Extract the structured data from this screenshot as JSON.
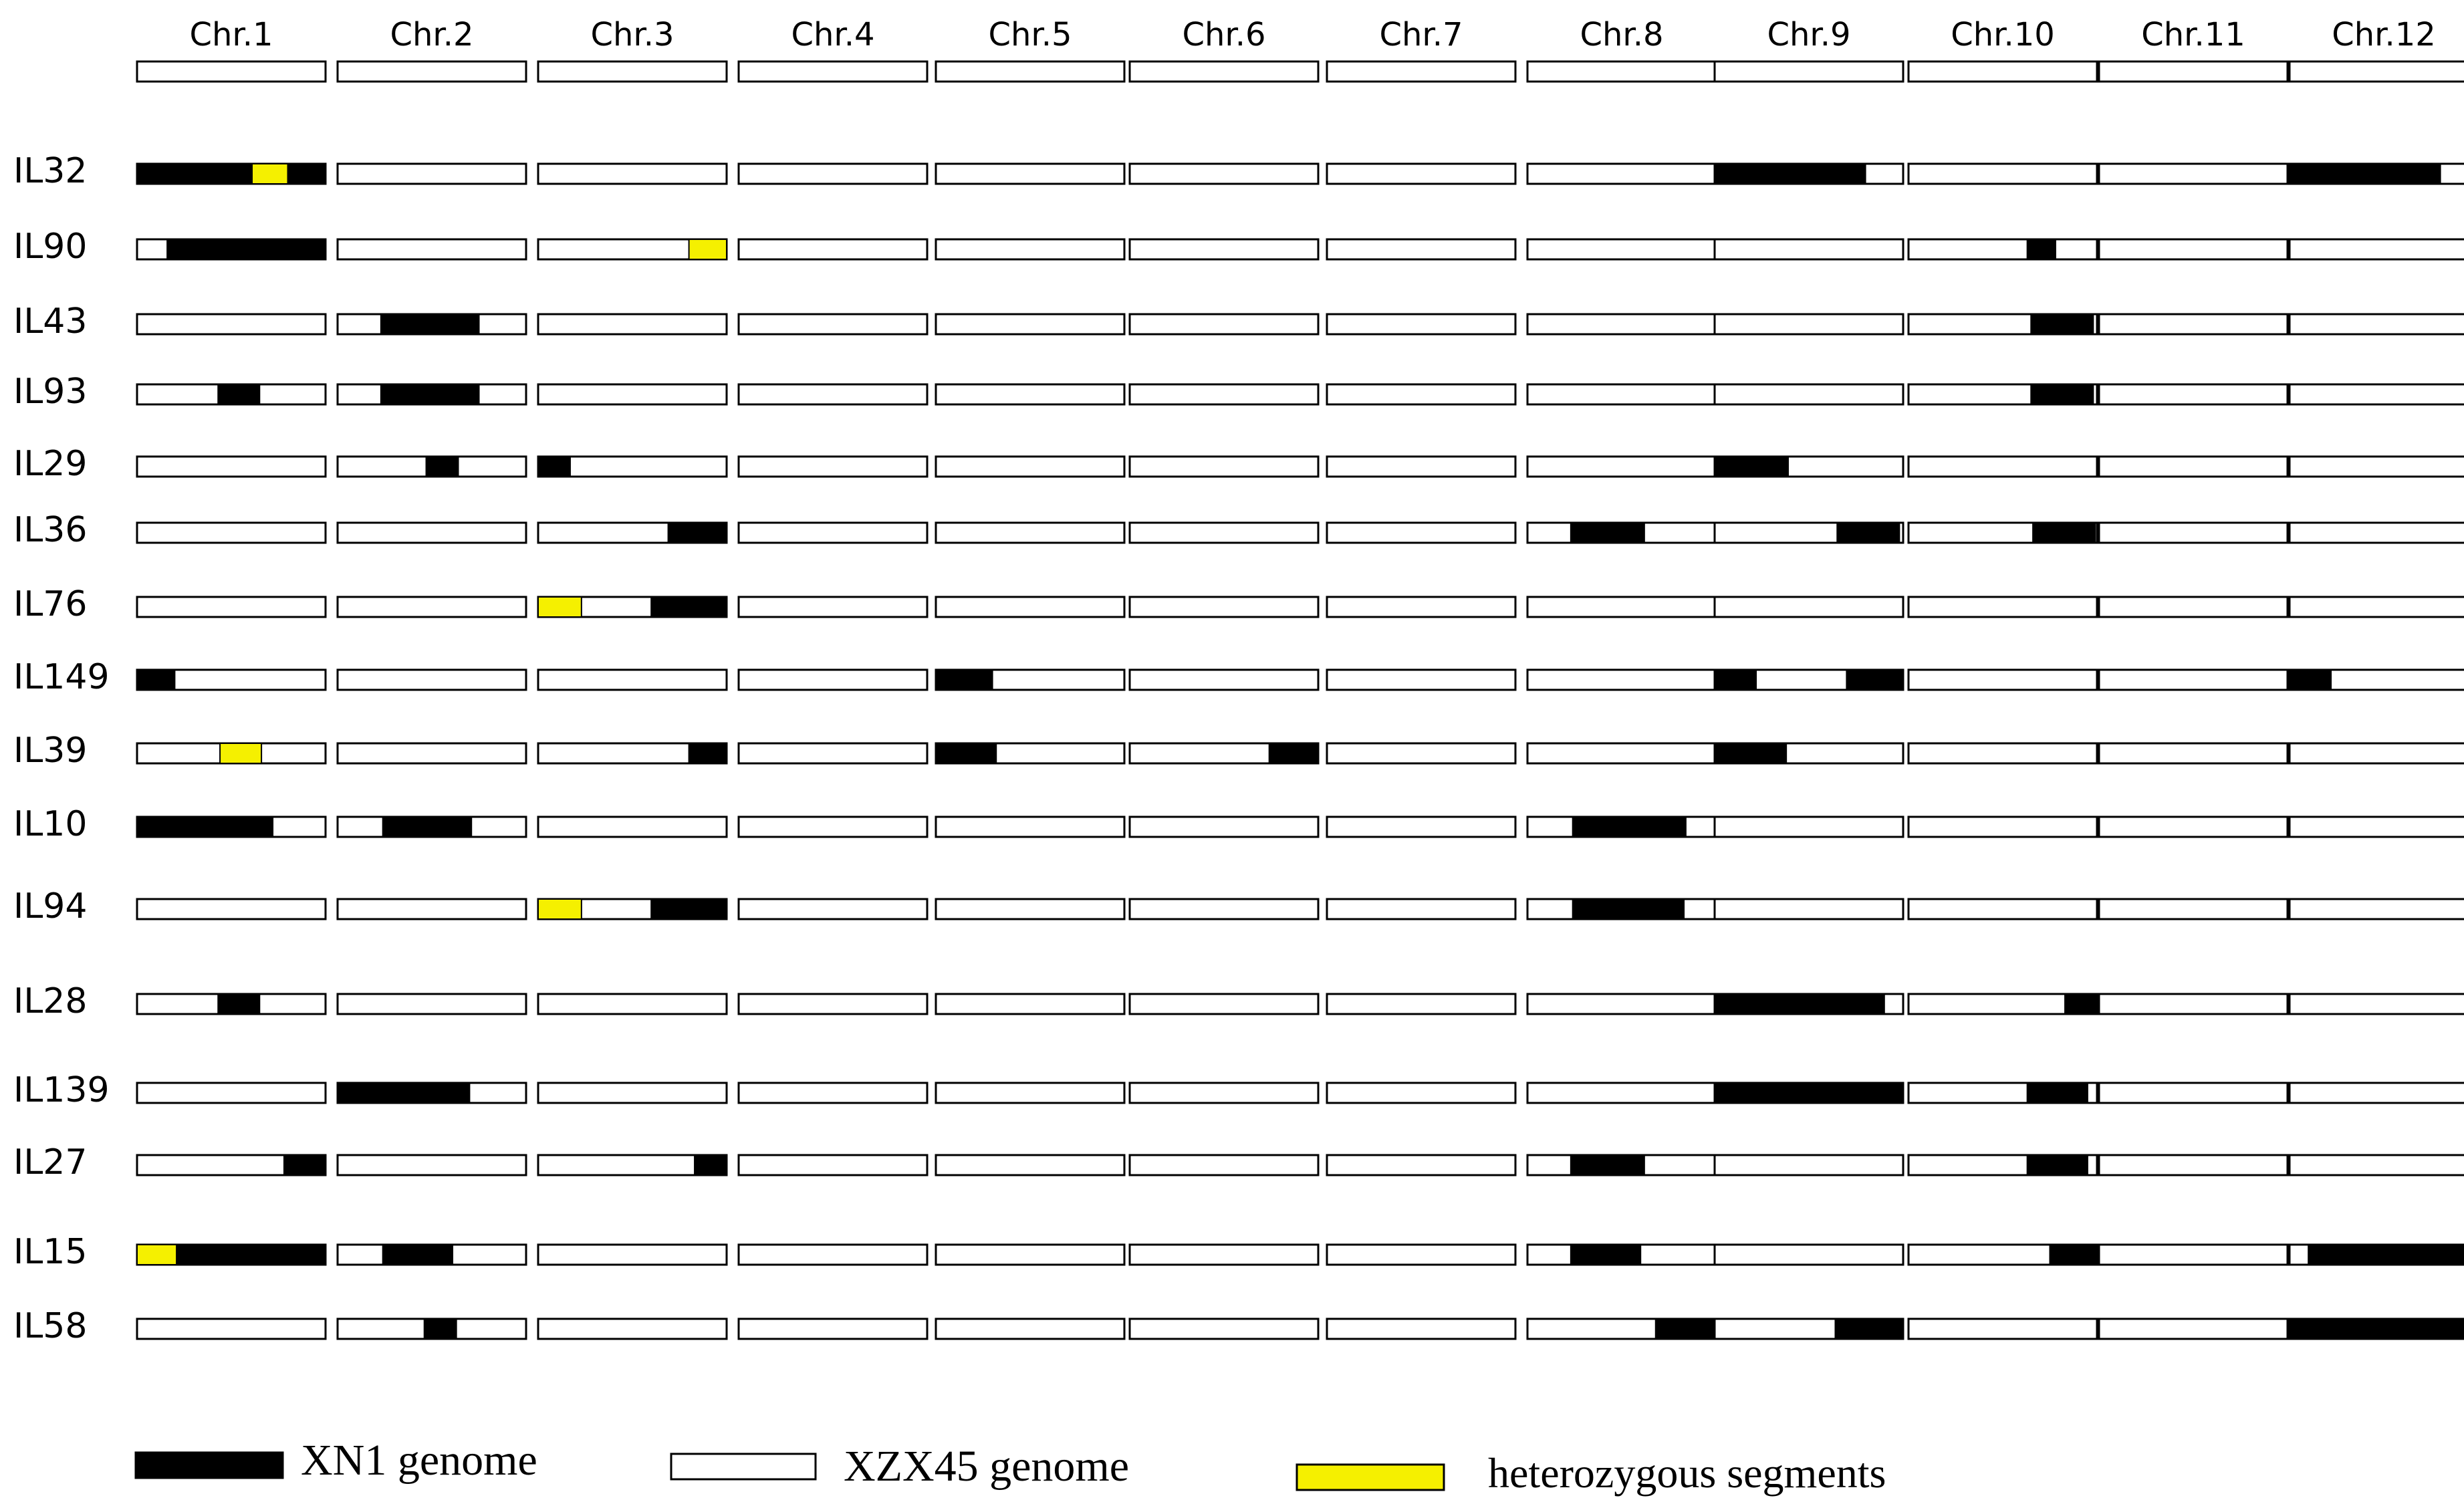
{
  "chromosomes": [
    "Chr.1",
    "Chr.2",
    "Chr.3",
    "Chr.4",
    "Chr.5",
    "Chr.6",
    "Chr.7",
    "Chr.8",
    "Chr.9",
    "Chr.10",
    "Chr.11",
    "Chr.12"
  ],
  "colors": {
    "xn1": "#000000",
    "xzx45": "#ffffff",
    "het": "#f5f000",
    "outline": "#000000"
  },
  "lines": [
    {
      "name": "IL32",
      "segments": [
        [
          {
            "s": 0,
            "e": 0.61,
            "g": "xn1"
          },
          {
            "s": 0.61,
            "e": 0.8,
            "g": "het"
          },
          {
            "s": 0.8,
            "e": 1,
            "g": "xn1"
          }
        ],
        [],
        [],
        [],
        [],
        [],
        [],
        [],
        [
          {
            "s": 0,
            "e": 0.8,
            "g": "xn1"
          }
        ],
        [],
        [],
        [
          {
            "s": 0,
            "e": 0.8,
            "g": "xn1"
          }
        ]
      ]
    },
    {
      "name": "IL90",
      "segments": [
        [
          {
            "s": 0.16,
            "e": 1,
            "g": "xn1"
          }
        ],
        [],
        [
          {
            "s": 0.8,
            "e": 1,
            "g": "het"
          }
        ],
        [],
        [],
        [],
        [],
        [],
        [],
        [
          {
            "s": 0.63,
            "e": 0.78,
            "g": "xn1"
          }
        ],
        [],
        []
      ]
    },
    {
      "name": "IL43",
      "segments": [
        [],
        [
          {
            "s": 0.23,
            "e": 0.75,
            "g": "xn1"
          }
        ],
        [],
        [],
        [],
        [],
        [],
        [],
        [],
        [
          {
            "s": 0.65,
            "e": 0.98,
            "g": "xn1"
          }
        ],
        [],
        []
      ]
    },
    {
      "name": "IL93",
      "segments": [
        [
          {
            "s": 0.43,
            "e": 0.65,
            "g": "xn1"
          }
        ],
        [
          {
            "s": 0.23,
            "e": 0.75,
            "g": "xn1"
          }
        ],
        [],
        [],
        [],
        [],
        [],
        [],
        [],
        [
          {
            "s": 0.65,
            "e": 0.98,
            "g": "xn1"
          }
        ],
        [],
        []
      ]
    },
    {
      "name": "IL29",
      "segments": [
        [],
        [
          {
            "s": 0.47,
            "e": 0.64,
            "g": "xn1"
          }
        ],
        [
          {
            "s": 0,
            "e": 0.17,
            "g": "xn1"
          }
        ],
        [],
        [],
        [],
        [],
        [],
        [
          {
            "s": 0,
            "e": 0.39,
            "g": "xn1"
          }
        ],
        [],
        [],
        []
      ]
    },
    {
      "name": "IL36",
      "segments": [
        [],
        [],
        [
          {
            "s": 0.69,
            "e": 1,
            "g": "xn1"
          }
        ],
        [],
        [],
        [],
        [],
        [
          {
            "s": 0.23,
            "e": 0.62,
            "g": "xn1"
          }
        ],
        [
          {
            "s": 0.65,
            "e": 0.98,
            "g": "xn1"
          }
        ],
        [
          {
            "s": 0.66,
            "e": 0.99,
            "g": "xn1"
          }
        ],
        [],
        []
      ]
    },
    {
      "name": "IL76",
      "segments": [
        [],
        [],
        [
          {
            "s": 0,
            "e": 0.23,
            "g": "het"
          },
          {
            "s": 0.6,
            "e": 1,
            "g": "xn1"
          }
        ],
        [],
        [],
        [],
        [],
        [],
        [],
        [],
        [],
        []
      ]
    },
    {
      "name": "IL149",
      "segments": [
        [
          {
            "s": 0,
            "e": 0.2,
            "g": "xn1"
          }
        ],
        [],
        [],
        [],
        [
          {
            "s": 0,
            "e": 0.3,
            "g": "xn1"
          }
        ],
        [],
        [],
        [],
        [
          {
            "s": 0,
            "e": 0.22,
            "g": "xn1"
          },
          {
            "s": 0.7,
            "e": 1,
            "g": "xn1"
          }
        ],
        [],
        [],
        [
          {
            "s": 0,
            "e": 0.22,
            "g": "xn1"
          }
        ]
      ]
    },
    {
      "name": "IL39",
      "segments": [
        [
          {
            "s": 0.44,
            "e": 0.66,
            "g": "het"
          }
        ],
        [],
        [
          {
            "s": 0.8,
            "e": 1,
            "g": "xn1"
          }
        ],
        [],
        [
          {
            "s": 0,
            "e": 0.32,
            "g": "xn1"
          }
        ],
        [
          {
            "s": 0.74,
            "e": 1,
            "g": "xn1"
          }
        ],
        [],
        [],
        [
          {
            "s": 0,
            "e": 0.38,
            "g": "xn1"
          }
        ],
        [],
        [],
        []
      ]
    },
    {
      "name": "IL10",
      "segments": [
        [
          {
            "s": 0,
            "e": 0.72,
            "g": "xn1"
          }
        ],
        [
          {
            "s": 0.24,
            "e": 0.71,
            "g": "xn1"
          }
        ],
        [],
        [],
        [],
        [],
        [],
        [
          {
            "s": 0.24,
            "e": 0.84,
            "g": "xn1"
          }
        ],
        [],
        [],
        [],
        []
      ]
    },
    {
      "name": "IL94",
      "segments": [
        [],
        [],
        [
          {
            "s": 0,
            "e": 0.23,
            "g": "het"
          },
          {
            "s": 0.6,
            "e": 1,
            "g": "xn1"
          }
        ],
        [],
        [],
        [],
        [],
        [
          {
            "s": 0.24,
            "e": 0.83,
            "g": "xn1"
          }
        ],
        [],
        [],
        [],
        []
      ]
    },
    {
      "name": "IL28",
      "segments": [
        [
          {
            "s": 0.43,
            "e": 0.65,
            "g": "xn1"
          }
        ],
        [],
        [],
        [],
        [],
        [],
        [],
        [],
        [
          {
            "s": 0,
            "e": 0.9,
            "g": "xn1"
          }
        ],
        [
          {
            "s": 0.83,
            "e": 1,
            "g": "xn1"
          }
        ],
        [],
        []
      ]
    },
    {
      "name": "IL139",
      "segments": [
        [],
        [
          {
            "s": 0,
            "e": 0.7,
            "g": "xn1"
          }
        ],
        [],
        [],
        [],
        [],
        [],
        [],
        [
          {
            "s": 0,
            "e": 1,
            "g": "xn1"
          }
        ],
        [
          {
            "s": 0.63,
            "e": 0.95,
            "g": "xn1"
          }
        ],
        [],
        []
      ]
    },
    {
      "name": "IL27",
      "segments": [
        [
          {
            "s": 0.78,
            "e": 1,
            "g": "xn1"
          }
        ],
        [],
        [
          {
            "s": 0.83,
            "e": 1,
            "g": "xn1"
          }
        ],
        [],
        [],
        [],
        [],
        [
          {
            "s": 0.23,
            "e": 0.62,
            "g": "xn1"
          }
        ],
        [],
        [
          {
            "s": 0.63,
            "e": 0.95,
            "g": "xn1"
          }
        ],
        [],
        []
      ]
    },
    {
      "name": "IL15",
      "segments": [
        [
          {
            "s": 0,
            "e": 0.21,
            "g": "het"
          },
          {
            "s": 0.21,
            "e": 1,
            "g": "xn1"
          }
        ],
        [
          {
            "s": 0.24,
            "e": 0.61,
            "g": "xn1"
          }
        ],
        [],
        [],
        [],
        [],
        [],
        [
          {
            "s": 0.23,
            "e": 0.6,
            "g": "xn1"
          }
        ],
        [],
        [
          {
            "s": 0.75,
            "e": 1,
            "g": "xn1"
          }
        ],
        [],
        [
          {
            "s": 0.1,
            "e": 0.96,
            "g": "xn1"
          }
        ]
      ]
    },
    {
      "name": "IL58",
      "segments": [
        [],
        [
          {
            "s": 0.46,
            "e": 0.63,
            "g": "xn1"
          }
        ],
        [],
        [],
        [],
        [],
        [],
        [
          {
            "s": 0.68,
            "e": 1,
            "g": "xn1"
          }
        ],
        [
          {
            "s": 0.64,
            "e": 1,
            "g": "xn1"
          }
        ],
        [],
        [],
        [
          {
            "s": 0,
            "e": 1,
            "g": "xn1"
          }
        ]
      ]
    }
  ],
  "legend": {
    "xn1": "XN1 genome",
    "xzx45": "XZX45 genome",
    "het": "heterozygous segments"
  }
}
